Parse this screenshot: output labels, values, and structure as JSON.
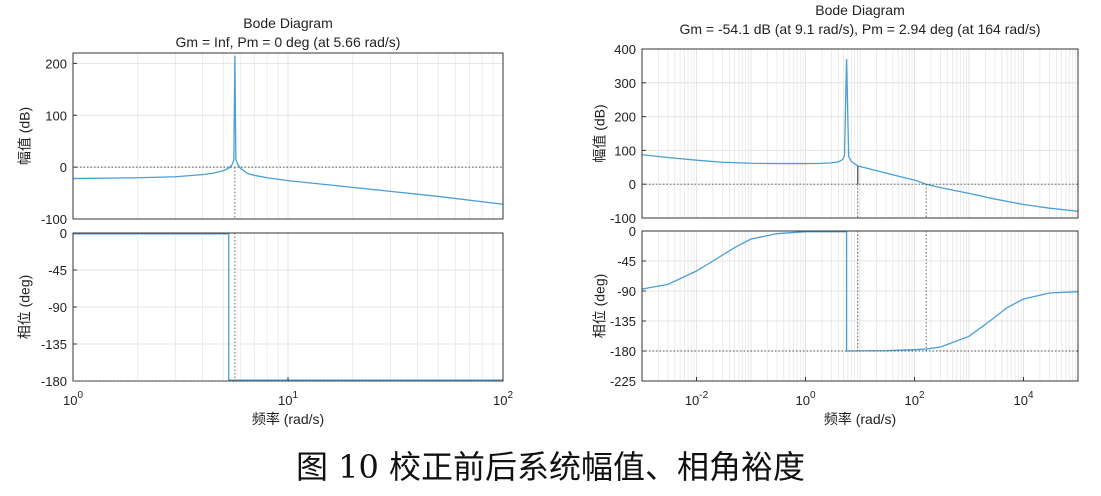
{
  "caption": "图 10 校正前后系统幅值、相角裕度",
  "style": {
    "line_color": "#4a9fd6",
    "axis_color": "#333333",
    "grid_color": "#e4e4e4",
    "marker_color": "#555555"
  },
  "chart_data": [
    {
      "type": "line",
      "title": "Bode Diagram",
      "subtitle": "Gm = Inf,  Pm = 0 deg (at 5.66 rad/s)",
      "xlabel": "频率  (rad/s)",
      "x_scale": "log",
      "xlim": [
        1,
        100
      ],
      "x_ticks": [
        1,
        10,
        100
      ],
      "x_tick_labels": [
        {
          "base": "10",
          "exp": "0"
        },
        {
          "base": "10",
          "exp": "1"
        },
        {
          "base": "10",
          "exp": "2"
        }
      ],
      "grid": true,
      "magnitude": {
        "ylabel": "幅值 (dB)",
        "ylim": [
          -100,
          220
        ],
        "y_ticks": [
          200,
          100,
          0,
          -100
        ],
        "y_tick_labels": [
          "200",
          "100",
          "0",
          "-100"
        ],
        "x": [
          1,
          2,
          3,
          4,
          4.5,
          5,
          5.3,
          5.5,
          5.6,
          5.66,
          5.72,
          5.85,
          6,
          6.5,
          7,
          8,
          10,
          20,
          50,
          100
        ],
        "y": [
          -22,
          -20.5,
          -18.5,
          -14.5,
          -11.5,
          -7,
          -2,
          5,
          14,
          215,
          14,
          5,
          -2,
          -12.5,
          -16,
          -20.5,
          -26,
          -39,
          -56.5,
          -71.5
        ]
      },
      "phase": {
        "ylabel": "相位 (deg)",
        "ylim": [
          -180,
          0
        ],
        "y_ticks": [
          0,
          -45,
          -90,
          -135,
          -180
        ],
        "y_tick_labels": [
          "0",
          "-45",
          "-90",
          "-135",
          "-180"
        ],
        "x": [
          1,
          5.3,
          5.3,
          100
        ],
        "y": [
          -1,
          -1,
          -179,
          -179
        ]
      },
      "markers": {
        "pm_frequency": 5.66,
        "pm_phase": -180,
        "mag_crossing_db": 0
      }
    },
    {
      "type": "line",
      "title": "Bode Diagram",
      "subtitle": "Gm = -54.1 dB (at 9.1 rad/s),  Pm = 2.94 deg (at 164 rad/s)",
      "xlabel": "频率  (rad/s)",
      "x_scale": "log",
      "xlim": [
        0.001,
        100000
      ],
      "x_ticks": [
        0.01,
        1,
        100,
        10000
      ],
      "x_tick_labels": [
        {
          "base": "10",
          "exp": "-2"
        },
        {
          "base": "10",
          "exp": "0"
        },
        {
          "base": "10",
          "exp": "2"
        },
        {
          "base": "10",
          "exp": "4"
        }
      ],
      "grid": true,
      "magnitude": {
        "ylabel": "幅值 (dB)",
        "ylim": [
          -100,
          400
        ],
        "y_ticks": [
          400,
          300,
          200,
          100,
          0,
          -100
        ],
        "y_tick_labels": [
          "400",
          "300",
          "200",
          "100",
          "0",
          "-100"
        ],
        "x": [
          0.001,
          0.003,
          0.01,
          0.03,
          0.1,
          0.3,
          1,
          2,
          3,
          4,
          4.8,
          5.2,
          5.66,
          6.2,
          7,
          9.1,
          20,
          50,
          100,
          164,
          300,
          1000,
          3000,
          10000,
          30000,
          100000
        ],
        "y": [
          87,
          79,
          71,
          65,
          62,
          61,
          61,
          61.5,
          63,
          66,
          73,
          85,
          370,
          82,
          67,
          54.1,
          40,
          24,
          12,
          0,
          -10,
          -27,
          -44,
          -60,
          -71,
          -80
        ]
      },
      "phase": {
        "ylabel": "相位 (deg)",
        "ylim": [
          -225,
          0
        ],
        "y_ticks": [
          0,
          -45,
          -90,
          -135,
          -180,
          -225
        ],
        "y_tick_labels": [
          "0",
          "-45",
          "-90",
          "-135",
          "-180",
          "-225"
        ],
        "x": [
          0.001,
          0.003,
          0.01,
          0.02,
          0.05,
          0.1,
          0.3,
          1,
          5.66,
          5.66,
          30,
          100,
          164,
          300,
          1000,
          2000,
          5000,
          10000,
          30000,
          100000
        ],
        "y": [
          -87,
          -80,
          -60,
          -45,
          -25,
          -12,
          -4,
          -1,
          -1,
          -180,
          -179.5,
          -178,
          -177.1,
          -174,
          -158,
          -140,
          -115,
          -102,
          -93,
          -91
        ]
      },
      "markers": {
        "gm_frequency": 9.1,
        "gm_mag_db": 54.1,
        "pm_frequency": 164,
        "pm_phase": -180,
        "mag_crossing_db": 0
      }
    }
  ]
}
